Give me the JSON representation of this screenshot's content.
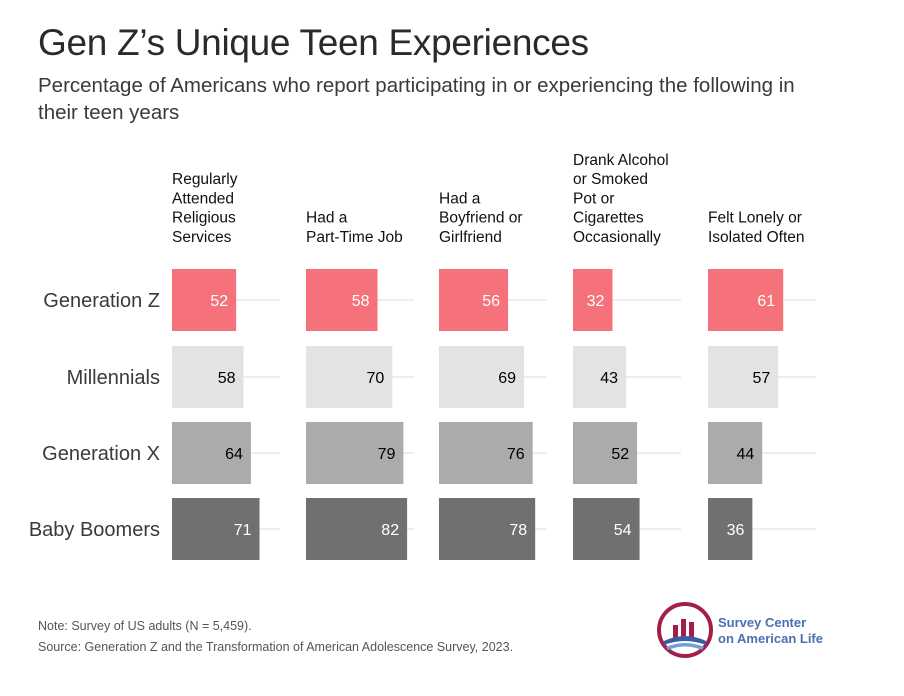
{
  "title": "Gen Z’s Unique Teen Experiences",
  "subtitle": "Percentage of Americans who report participating in or experiencing the following in their teen years",
  "note": {
    "line1": "Note: Survey of US adults (N = 5,459).",
    "line2": "Source: Generation Z and the Transformation of American Adolescence Survey, 2023."
  },
  "logo": {
    "line1": "Survey Center",
    "line2": "on American Life"
  },
  "colors": {
    "generation_z": "#f6727a",
    "millennials": "#e3e3e3",
    "generation_x": "#ababab",
    "baby_boomers": "#707070",
    "track": "#e8e8e8"
  },
  "chart_data": {
    "type": "bar",
    "orientation": "horizontal",
    "layout": "small-multiples",
    "categories": [
      "Generation Z",
      "Millennials",
      "Generation X",
      "Baby Boomers"
    ],
    "panels": [
      {
        "title_lines": [
          "Regularly",
          "Attended",
          "Religious",
          "Services"
        ],
        "values": [
          52,
          58,
          64,
          71
        ]
      },
      {
        "title_lines": [
          "Had a",
          "Part-Time Job"
        ],
        "values": [
          58,
          70,
          79,
          82
        ]
      },
      {
        "title_lines": [
          "Had a",
          "Boyfriend or",
          "Girlfriend"
        ],
        "values": [
          56,
          69,
          76,
          78
        ]
      },
      {
        "title_lines": [
          "Drank Alcohol",
          "or Smoked",
          "Pot or",
          "Cigarettes",
          "Occasionally"
        ],
        "values": [
          32,
          43,
          52,
          54
        ]
      },
      {
        "title_lines": [
          "Felt Lonely or",
          "Isolated Often"
        ],
        "values": [
          61,
          57,
          44,
          36
        ]
      }
    ],
    "xlim": [
      0,
      100
    ],
    "grid": true,
    "legend": "none"
  }
}
